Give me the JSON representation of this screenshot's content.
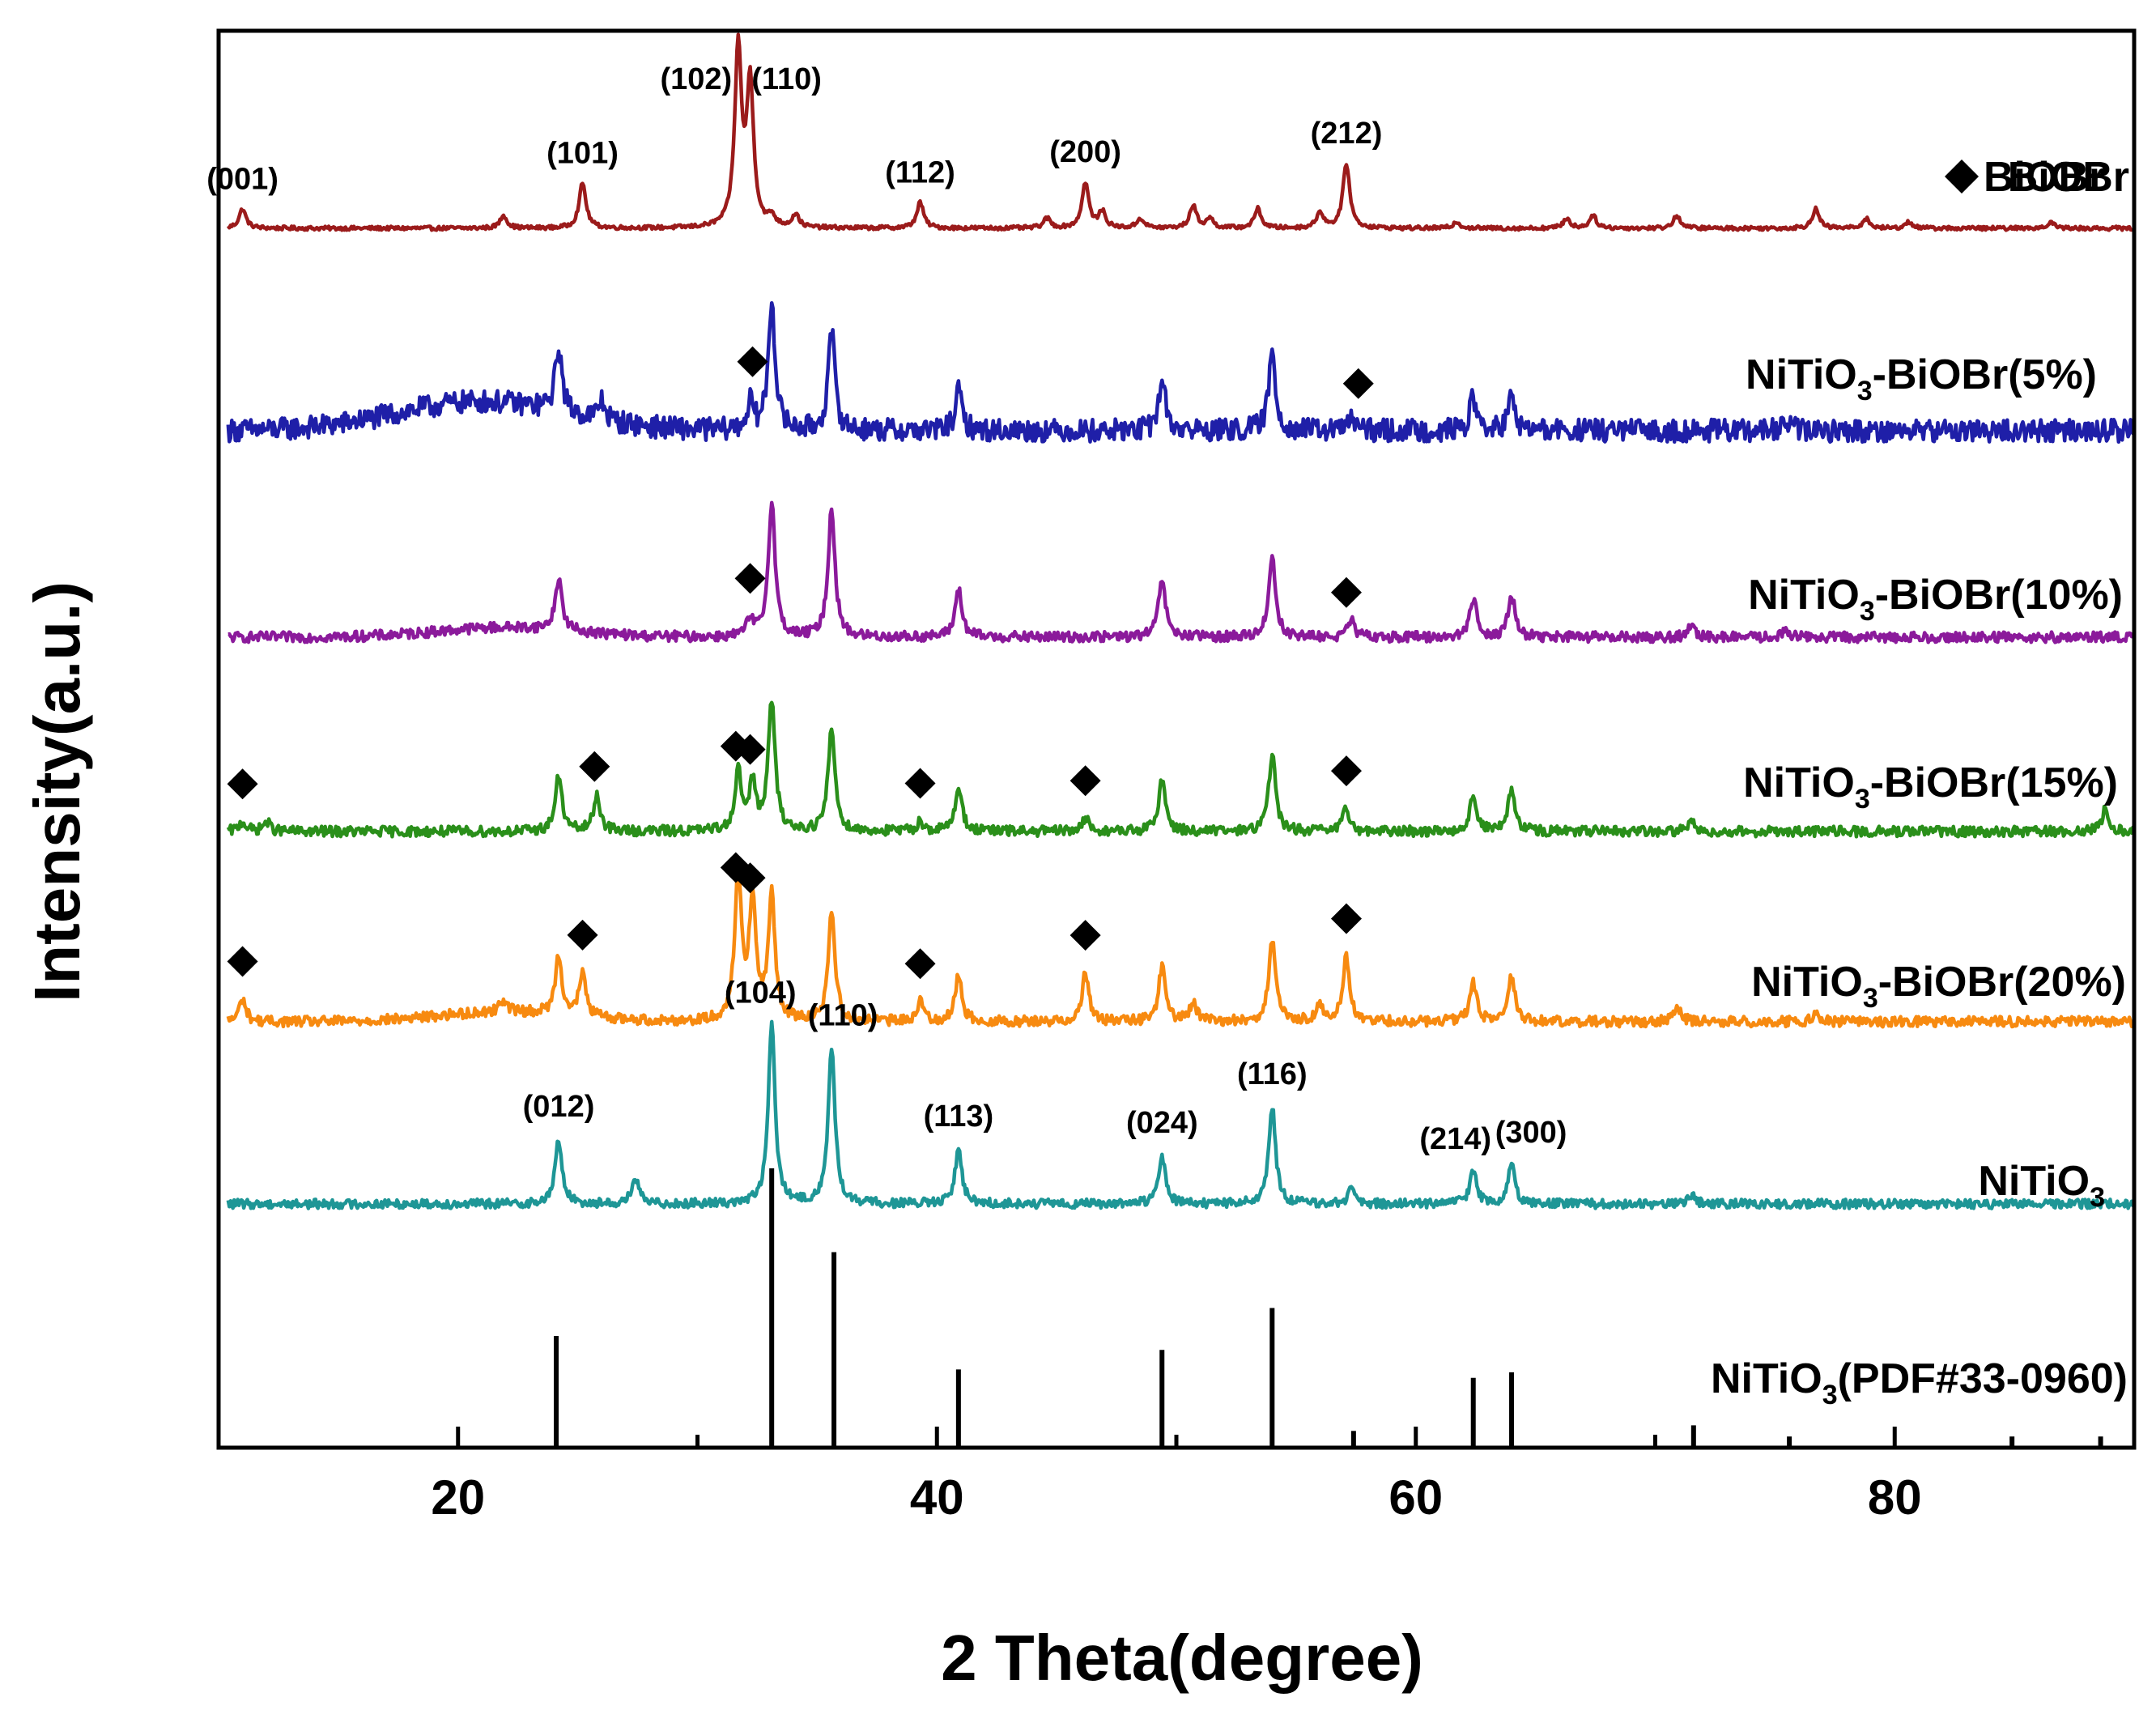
{
  "chart_data": {
    "type": "line",
    "title": "",
    "xlabel": "2 Theta(degree)",
    "ylabel": "Intensity(a.u.)",
    "xlim": [
      10,
      90
    ],
    "x_ticks": [
      "20",
      "40",
      "60",
      "80"
    ],
    "x_tick_values": [
      20,
      40,
      60,
      80
    ],
    "legend": "BiOBr",
    "legend_marker": "diamond",
    "series": [
      {
        "name": "BiOBr",
        "label": "BiOBr",
        "label_main": "BiOBr",
        "label_sub": "",
        "label_tail": "",
        "color": "#9b1b1b",
        "baseline": 0.0,
        "noise": 0.6,
        "hump": null,
        "peaks": [
          [
            11.0,
            6
          ],
          [
            21.9,
            4
          ],
          [
            25.2,
            14
          ],
          [
            31.7,
            55
          ],
          [
            32.2,
            44
          ],
          [
            33.1,
            3
          ],
          [
            34.1,
            4
          ],
          [
            39.3,
            8
          ],
          [
            44.6,
            3
          ],
          [
            46.2,
            14
          ],
          [
            46.9,
            5
          ],
          [
            48.5,
            3
          ],
          [
            50.7,
            7
          ],
          [
            51.4,
            3
          ],
          [
            53.4,
            6
          ],
          [
            56.0,
            5
          ],
          [
            57.1,
            20
          ],
          [
            61.7,
            2
          ],
          [
            66.3,
            3
          ],
          [
            67.4,
            4
          ],
          [
            70.9,
            4
          ],
          [
            76.7,
            6
          ],
          [
            78.8,
            3
          ],
          [
            80.6,
            2
          ],
          [
            86.5,
            2
          ]
        ],
        "peak_labels": [
          {
            "text": "(001)",
            "x": 11.0
          },
          {
            "text": "(101)",
            "x": 25.2
          },
          {
            "text": "(102)",
            "x": 31.7
          },
          {
            "text": "(110)",
            "x": 32.2
          },
          {
            "text": "(112)",
            "x": 39.3
          },
          {
            "text": "(200)",
            "x": 46.2
          },
          {
            "text": "(212)",
            "x": 57.1
          }
        ],
        "markers": []
      },
      {
        "name": "NiTiO3-BiOBr(5%)",
        "label": "NiTiO3-BiOBr(5%)",
        "label_main": "NiTiO",
        "label_sub": "3",
        "label_tail": "-BiOBr(5%)",
        "color": "#1f1fa8",
        "baseline": 4.0,
        "noise": 3.5,
        "hump": {
          "center": 21,
          "width": 5,
          "height": 9
        },
        "peaks": [
          [
            24.2,
            20
          ],
          [
            26.0,
            6
          ],
          [
            32.2,
            8
          ],
          [
            33.1,
            40
          ],
          [
            35.6,
            30
          ],
          [
            40.9,
            12
          ],
          [
            49.4,
            16
          ],
          [
            54.0,
            24
          ],
          [
            57.3,
            4
          ],
          [
            62.4,
            10
          ],
          [
            64.0,
            10
          ],
          [
            75.5,
            3
          ]
        ],
        "peak_labels": [],
        "markers": [
          32.3,
          57.6
        ]
      },
      {
        "name": "NiTiO3-BiOBr(10%)",
        "label": "NiTiO3-BiOBr(10%)",
        "label_main": "NiTiO",
        "label_sub": "3",
        "label_tail": "-BiOBr(10%)",
        "color": "#8b1a9b",
        "baseline": 0.0,
        "noise": 1.6,
        "hump": {
          "center": 22,
          "width": 4,
          "height": 3
        },
        "peaks": [
          [
            24.2,
            16
          ],
          [
            32.2,
            5
          ],
          [
            33.1,
            42
          ],
          [
            35.6,
            40
          ],
          [
            40.9,
            15
          ],
          [
            49.4,
            18
          ],
          [
            54.0,
            25
          ],
          [
            57.3,
            5
          ],
          [
            62.4,
            12
          ],
          [
            64.0,
            13
          ],
          [
            71.5,
            3
          ],
          [
            75.5,
            2
          ]
        ],
        "peak_labels": [],
        "markers": [
          32.2,
          57.1
        ]
      },
      {
        "name": "NiTiO3-BiOBr(15%)",
        "label": "NiTiO3-BiOBr(15%)",
        "label_main": "NiTiO",
        "label_sub": "3",
        "label_tail": "-BiOBr(15%)",
        "color": "#2a8f1a",
        "baseline": 0.0,
        "noise": 1.6,
        "hump": null,
        "peaks": [
          [
            11.0,
            3
          ],
          [
            12.0,
            3
          ],
          [
            24.2,
            17
          ],
          [
            25.8,
            11
          ],
          [
            31.7,
            18
          ],
          [
            32.3,
            14
          ],
          [
            33.1,
            40
          ],
          [
            35.6,
            32
          ],
          [
            39.3,
            3
          ],
          [
            40.9,
            14
          ],
          [
            46.2,
            4
          ],
          [
            49.4,
            16
          ],
          [
            54.0,
            24
          ],
          [
            57.1,
            7
          ],
          [
            62.4,
            11
          ],
          [
            64.0,
            13
          ],
          [
            71.5,
            3
          ],
          [
            88.8,
            7
          ]
        ],
        "peak_labels": [],
        "markers": [
          11.0,
          25.7,
          31.6,
          32.2,
          39.3,
          46.2,
          57.1
        ]
      },
      {
        "name": "NiTiO3-BiOBr(20%)",
        "label": "NiTiO3-BiOBr(20%)",
        "label_main": "NiTiO",
        "label_sub": "3",
        "label_tail": "-BiOBr(20%)",
        "color": "#f78a10",
        "baseline": 0.0,
        "noise": 1.6,
        "hump": {
          "center": 22,
          "width": 4,
          "height": 3
        },
        "peaks": [
          [
            11.0,
            7
          ],
          [
            21.9,
            4
          ],
          [
            24.2,
            18
          ],
          [
            25.2,
            13
          ],
          [
            31.7,
            45
          ],
          [
            32.3,
            36
          ],
          [
            33.1,
            38
          ],
          [
            35.6,
            34
          ],
          [
            39.3,
            6
          ],
          [
            40.9,
            14
          ],
          [
            46.2,
            15
          ],
          [
            49.4,
            17
          ],
          [
            50.7,
            6
          ],
          [
            54.0,
            25
          ],
          [
            56.0,
            5
          ],
          [
            57.1,
            20
          ],
          [
            62.4,
            12
          ],
          [
            64.0,
            14
          ],
          [
            70.9,
            5
          ],
          [
            76.7,
            3
          ]
        ],
        "peak_labels": [],
        "markers": [
          11.0,
          25.2,
          31.6,
          32.2,
          39.3,
          46.2,
          57.1
        ]
      },
      {
        "name": "NiTiO3",
        "label": "NiTiO3",
        "label_main": "NiTiO",
        "label_sub": "3",
        "label_tail": "",
        "color": "#1e9696",
        "baseline": 0.0,
        "noise": 1.4,
        "hump": null,
        "peaks": [
          [
            24.2,
            20
          ],
          [
            27.4,
            8
          ],
          [
            33.1,
            55
          ],
          [
            35.6,
            48
          ],
          [
            40.9,
            17
          ],
          [
            49.4,
            15
          ],
          [
            54.0,
            30
          ],
          [
            57.3,
            4
          ],
          [
            62.4,
            10
          ],
          [
            64.0,
            12
          ],
          [
            71.5,
            3
          ]
        ],
        "peak_labels": [
          {
            "text": "(012)",
            "x": 24.2
          },
          {
            "text": "(104)",
            "x": 33.1
          },
          {
            "text": "(110)",
            "x": 35.6
          },
          {
            "text": "(113)",
            "x": 40.9
          },
          {
            "text": "(024)",
            "x": 49.4
          },
          {
            "text": "(116)",
            "x": 54.0
          },
          {
            "text": "(214)",
            "x": 62.4
          },
          {
            "text": "(300)",
            "x": 64.0
          }
        ],
        "markers": []
      }
    ],
    "reference": {
      "name": "NiTiO3(PDF#33-0960)",
      "label": "NiTiO3(PDF#33-0960)",
      "label_main": "NiTiO",
      "label_sub": "3",
      "label_tail": "(PDF#33-0960)",
      "lines": [
        [
          24.1,
          40
        ],
        [
          33.1,
          100
        ],
        [
          35.7,
          70
        ],
        [
          40.9,
          28
        ],
        [
          49.4,
          35
        ],
        [
          54.0,
          50
        ],
        [
          57.4,
          6
        ],
        [
          62.4,
          25
        ],
        [
          64.0,
          27
        ],
        [
          71.6,
          8
        ],
        [
          75.6,
          4
        ],
        [
          84.9,
          4
        ],
        [
          88.6,
          4
        ]
      ]
    }
  }
}
